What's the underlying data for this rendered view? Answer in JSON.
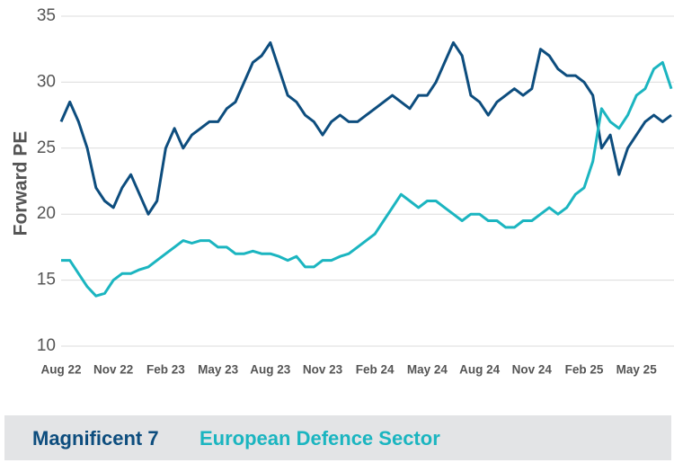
{
  "chart_data": {
    "type": "line",
    "y_label": "Forward PE",
    "categories": [
      "Aug 22",
      null,
      null,
      null,
      null,
      null,
      "Nov 22",
      null,
      null,
      null,
      null,
      null,
      "Feb 23",
      null,
      null,
      null,
      null,
      null,
      "May 23",
      null,
      null,
      null,
      null,
      null,
      "Aug 23",
      null,
      null,
      null,
      null,
      null,
      "Nov 23",
      null,
      null,
      null,
      null,
      null,
      "Feb 24",
      null,
      null,
      null,
      null,
      null,
      "May 24",
      null,
      null,
      null,
      null,
      null,
      "Aug 24",
      null,
      null,
      null,
      null,
      null,
      "Nov 24",
      null,
      null,
      null,
      null,
      null,
      "Feb 25",
      null,
      null,
      null,
      null,
      null,
      "May 25",
      null,
      null,
      null,
      null
    ],
    "series": [
      {
        "name": "Magnificent 7",
        "color": "#0d4d7e",
        "values": [
          27,
          28.5,
          27,
          25,
          22,
          21,
          20.5,
          22,
          23,
          21.5,
          20,
          21,
          25,
          26.5,
          25,
          26,
          26.5,
          27,
          27,
          28,
          28.5,
          30,
          31.5,
          32,
          33,
          31,
          29,
          28.5,
          27.5,
          27,
          26,
          27,
          27.5,
          27,
          27,
          27.5,
          28,
          28.5,
          29,
          28.5,
          28,
          29,
          29,
          30,
          31.5,
          33,
          32,
          29,
          28.5,
          27.5,
          28.5,
          29,
          29.5,
          29,
          29.5,
          32.5,
          32,
          31,
          30.5,
          30.5,
          30,
          29,
          25,
          26,
          23,
          25,
          26,
          27,
          27.5,
          27,
          27.5
        ]
      },
      {
        "name": "European Defence Sector",
        "color": "#1bb5c0",
        "values": [
          16.5,
          16.5,
          15.5,
          14.5,
          13.8,
          14,
          15,
          15.5,
          15.5,
          15.8,
          16,
          16.5,
          17,
          17.5,
          18,
          17.8,
          18,
          18,
          17.5,
          17.5,
          17,
          17,
          17.2,
          17,
          17,
          16.8,
          16.5,
          16.8,
          16,
          16,
          16.5,
          16.5,
          16.8,
          17,
          17.5,
          18,
          18.5,
          19.5,
          20.5,
          21.5,
          21,
          20.5,
          21,
          21,
          20.5,
          20,
          19.5,
          20,
          20,
          19.5,
          19.5,
          19,
          19,
          19.5,
          19.5,
          20,
          20.5,
          20,
          20.5,
          21.5,
          22,
          24,
          28,
          27,
          26.5,
          27.5,
          29,
          29.5,
          31,
          31.5,
          29.5
        ]
      }
    ],
    "ylim": [
      10,
      35
    ],
    "yticks": [
      10,
      15,
      20,
      25,
      30,
      35
    ],
    "grid": true
  }
}
